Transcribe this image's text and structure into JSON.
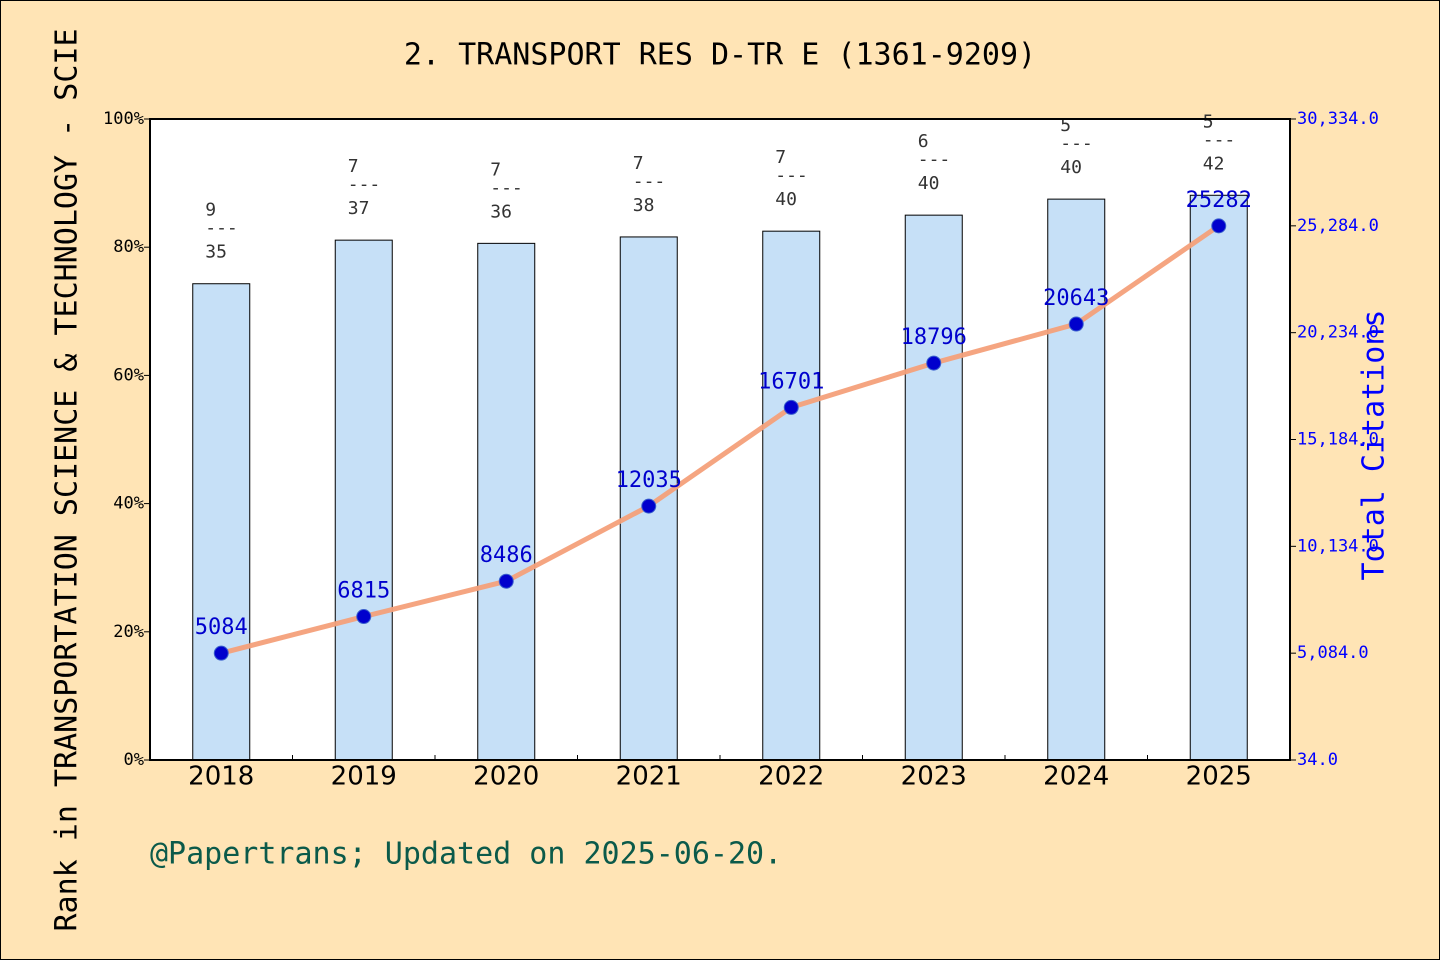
{
  "chart_data": {
    "type": "bar-line",
    "title": "2. TRANSPORT RES D-TR E (1361-9209)",
    "ylabel": "Rank in TRANSPORTATION SCIENCE & TECHNOLOGY - SCIE",
    "y2label": "Total Citations",
    "footnote": "@Papertrans; Updated on 2025-06-20.",
    "categories": [
      "2018",
      "2019",
      "2020",
      "2021",
      "2022",
      "2023",
      "2024",
      "2025"
    ],
    "series": [
      {
        "type": "bar",
        "color": "#c6e0f7",
        "values": [
          74.3,
          81.1,
          80.6,
          81.6,
          82.5,
          85.0,
          87.5,
          88.1
        ]
      },
      {
        "type": "line",
        "axis": "y2",
        "color": "#f4a07a",
        "marker_color": "#0000cd",
        "values": [
          5084,
          6815,
          8486,
          12035,
          16701,
          18796,
          20643,
          25282
        ]
      }
    ],
    "annotations": [
      {
        "rank": "9",
        "separator": "---",
        "total": "35"
      },
      {
        "rank": "7",
        "separator": "---",
        "total": "37"
      },
      {
        "rank": "7",
        "separator": "---",
        "total": "36"
      },
      {
        "rank": "7",
        "separator": "---",
        "total": "38"
      },
      {
        "rank": "7",
        "separator": "---",
        "total": "40"
      },
      {
        "rank": "6",
        "separator": "---",
        "total": "40"
      },
      {
        "rank": "5",
        "separator": "---",
        "total": "40"
      },
      {
        "rank": "5",
        "separator": "---",
        "total": "42"
      }
    ],
    "ylim": [
      0,
      100
    ],
    "yticks": [
      {
        "value": 0,
        "label": "0%"
      },
      {
        "value": 20,
        "label": "20%"
      },
      {
        "value": 40,
        "label": "40%"
      },
      {
        "value": 60,
        "label": "60%"
      },
      {
        "value": 80,
        "label": "80%"
      },
      {
        "value": 100,
        "label": "100%"
      }
    ],
    "y2lim": [
      34,
      30334
    ],
    "y2ticks": [
      {
        "value": 34,
        "label": "34.0"
      },
      {
        "value": 5084,
        "label": "5,084.0"
      },
      {
        "value": 10134,
        "label": "10,134.0"
      },
      {
        "value": 15184,
        "label": "15,184.0"
      },
      {
        "value": 20234,
        "label": "20,234.0"
      },
      {
        "value": 25284,
        "label": "25,284.0"
      },
      {
        "value": 30334,
        "label": "30,334.0"
      }
    ]
  }
}
